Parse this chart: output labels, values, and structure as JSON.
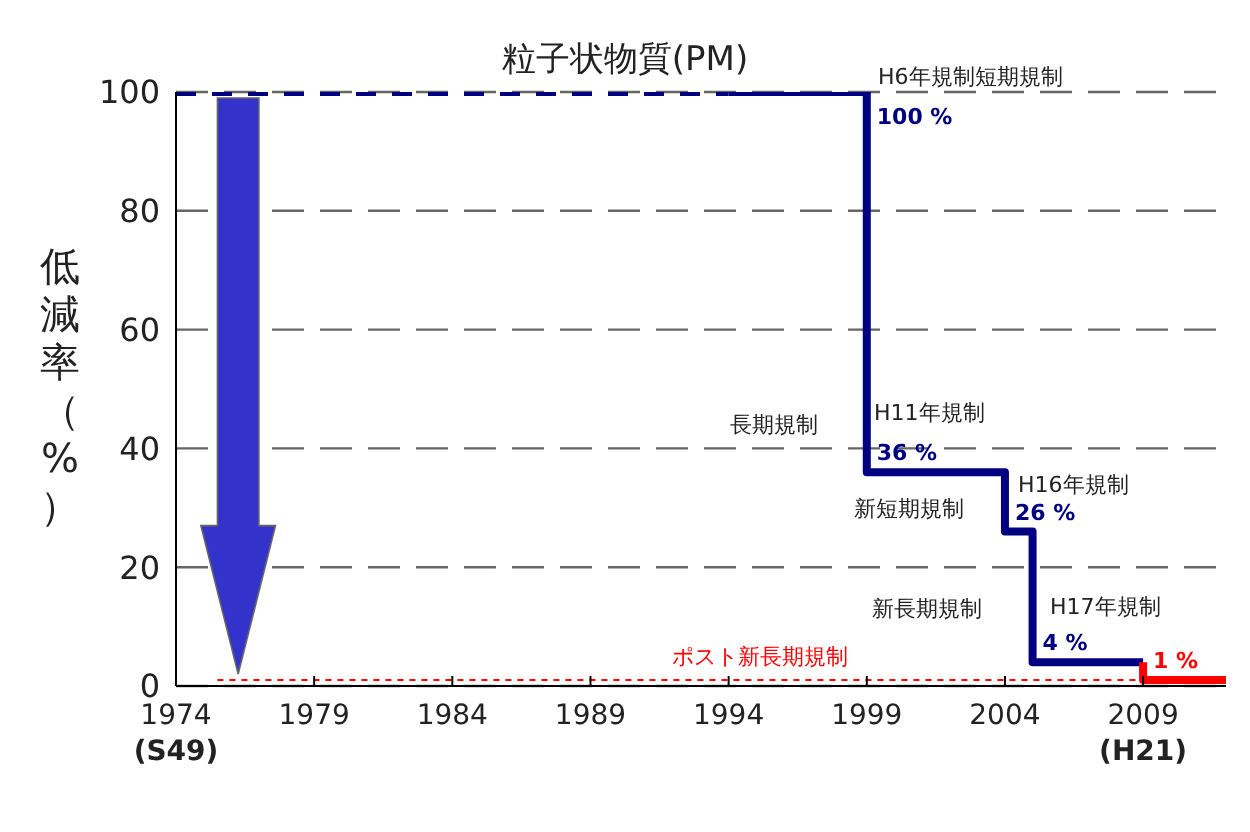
{
  "chart_data": {
    "type": "line",
    "title": "粒子状物質(PM)",
    "ylabel": "低減率（%）",
    "xlim": [
      1974,
      2012
    ],
    "xticks": [
      {
        "value": 1974,
        "label": "1974\n(S49)"
      },
      1979,
      1984,
      1989,
      1994,
      1999,
      2004,
      {
        "value": 2009,
        "label": "2009\n(H21)"
      }
    ],
    "ylim": [
      0,
      100
    ],
    "yticks": [
      0,
      20,
      40,
      60,
      80,
      100
    ],
    "grid": "y",
    "series": [
      {
        "color": "#000080",
        "line_style": "dashed",
        "x": [
          1974,
          1994
        ],
        "values": [
          100,
          100
        ]
      },
      {
        "color": "#000080",
        "line_style": "solid",
        "x": [
          1994,
          1999,
          1999,
          2004,
          2004,
          2005,
          2005,
          2009
        ],
        "values": [
          100,
          100,
          36,
          36,
          26,
          26,
          4,
          4
        ],
        "value_labels": [
          null,
          "100 %",
          "36 %",
          null,
          "26 %",
          null,
          "4 %",
          null
        ]
      },
      {
        "color": "#ff0000",
        "line_style": "solid",
        "x": [
          2009,
          2009,
          2012
        ],
        "values": [
          4,
          1,
          1
        ],
        "value_labels": [
          null,
          "1 %",
          null
        ]
      },
      {
        "color": "#ff0000",
        "line_style": "dotted",
        "x": [
          1975.5,
          2009
        ],
        "values": [
          1,
          1
        ]
      }
    ],
    "annotations": [
      "H6年規制短期規制",
      "長期規制",
      "H11年規制",
      "新短期規制",
      "H16年規制",
      "新長期規制",
      "H17年規制",
      "ポスト新長期規制"
    ]
  }
}
